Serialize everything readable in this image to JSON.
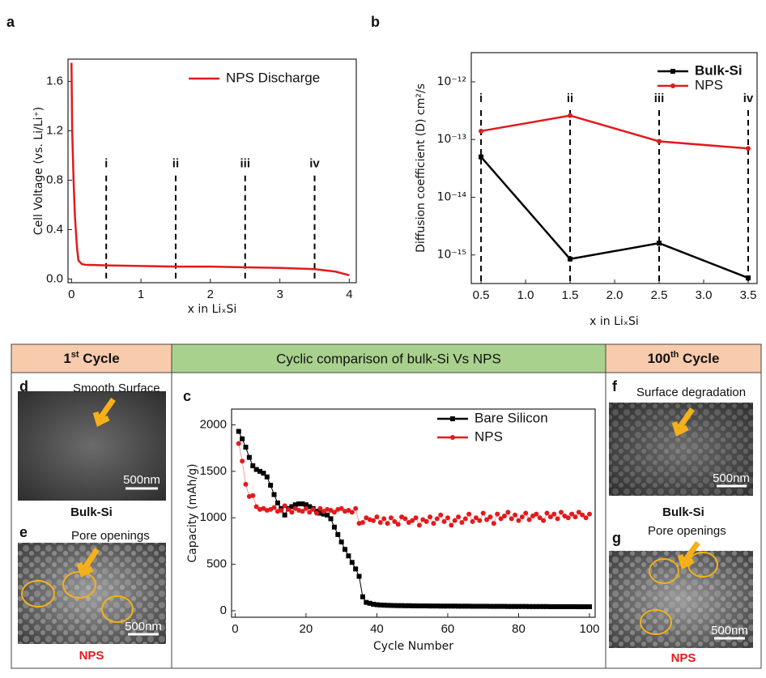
{
  "chart_data": [
    {
      "type": "line",
      "letter": "a",
      "xlabel": "x in LiₓSi",
      "ylabel": "Cell Voltage (vs. Li/Li⁺)",
      "x": [
        0,
        0.01,
        0.03,
        0.05,
        0.08,
        0.1,
        0.15,
        0.2,
        0.5,
        1,
        1.5,
        2,
        2.5,
        3,
        3.5,
        3.8,
        4
      ],
      "series": [
        {
          "name": "NPS Discharge",
          "color": "#e31a1c",
          "marker": "none",
          "values": [
            1.75,
            1.2,
            0.8,
            0.5,
            0.25,
            0.15,
            0.12,
            0.115,
            0.11,
            0.105,
            0.1,
            0.1,
            0.095,
            0.09,
            0.08,
            0.06,
            0.03
          ]
        }
      ],
      "xlim": [
        -0.05,
        4.1
      ],
      "xticks": [
        0,
        1,
        2,
        3,
        4
      ],
      "ylim": [
        -0.03,
        1.78
      ],
      "yticks": [
        {
          "value": 0,
          "label": "0.0"
        },
        {
          "value": 0.4,
          "label": "0.4"
        },
        {
          "value": 0.8,
          "label": "0.8"
        },
        {
          "value": 1.2,
          "label": "1.2"
        },
        {
          "value": 1.6,
          "label": "1.6"
        }
      ],
      "markers": [
        {
          "x": 0.5,
          "label": "i"
        },
        {
          "x": 1.5,
          "label": "ii"
        },
        {
          "x": 2.5,
          "label": "iii"
        },
        {
          "x": 3.5,
          "label": "iv"
        }
      ],
      "legend": "upper right"
    },
    {
      "type": "line",
      "letter": "b",
      "xlabel": "x in LiₓSi",
      "ylabel": "Diffusion coefficient (D) cm²/s",
      "x": [
        0.5,
        1.5,
        2.5,
        3.5
      ],
      "series": [
        {
          "name": "Bulk-Si",
          "color": "#000000",
          "marker": "square",
          "values": [
            5e-14,
            8.5e-16,
            1.6e-15,
            4e-16
          ]
        },
        {
          "name": "NPS",
          "color": "#e31a1c",
          "marker": "circle",
          "values": [
            1.4e-13,
            2.6e-13,
            9.3e-14,
            7e-14
          ]
        }
      ],
      "xlim": [
        0.39,
        3.6
      ],
      "xticks": [
        0.5,
        {
          "value": 1,
          "label": "1.0"
        },
        1.5,
        {
          "value": 2,
          "label": "2.0"
        },
        2.5,
        {
          "value": 3,
          "label": "3.0"
        },
        3.5
      ],
      "yscale": "log",
      "ylim": [
        3.2e-16,
        3.2e-12
      ],
      "yticks": [
        {
          "value": 1e-15,
          "label": "10⁻¹⁵"
        },
        {
          "value": 1e-14,
          "label": "10⁻¹⁴"
        },
        {
          "value": 1e-13,
          "label": "10⁻¹³"
        },
        {
          "value": 1e-12,
          "label": "10⁻¹²"
        }
      ],
      "markers": [
        {
          "x": 0.5,
          "label": "i"
        },
        {
          "x": 1.5,
          "label": "ii"
        },
        {
          "x": 2.5,
          "label": "iii"
        },
        {
          "x": 3.5,
          "label": "iv"
        }
      ],
      "legend": "upper right"
    },
    {
      "type": "line",
      "letter": "c",
      "xlabel": "Cycle Number",
      "ylabel": "Capacity (mAh/g)",
      "x": [
        1,
        2,
        3,
        4,
        5,
        6,
        7,
        8,
        9,
        10,
        11,
        12,
        13,
        14,
        15,
        16,
        17,
        18,
        19,
        20,
        21,
        22,
        23,
        24,
        25,
        26,
        27,
        28,
        29,
        30,
        31,
        32,
        33,
        34,
        35,
        36,
        37,
        38,
        39,
        40,
        41,
        42,
        43,
        44,
        45,
        46,
        47,
        48,
        49,
        50,
        51,
        52,
        53,
        54,
        55,
        56,
        57,
        58,
        59,
        60,
        61,
        62,
        63,
        64,
        65,
        66,
        67,
        68,
        69,
        70,
        71,
        72,
        73,
        74,
        75,
        76,
        77,
        78,
        79,
        80,
        81,
        82,
        83,
        84,
        85,
        86,
        87,
        88,
        89,
        90,
        91,
        92,
        93,
        94,
        95,
        96,
        97,
        98,
        99,
        100
      ],
      "series": [
        {
          "name": "Bare Silicon",
          "color": "#000000",
          "marker": "square",
          "values": [
            1930,
            1850,
            1760,
            1650,
            1560,
            1520,
            1500,
            1480,
            1440,
            1350,
            1250,
            1160,
            1100,
            1030,
            1100,
            1120,
            1140,
            1150,
            1150,
            1140,
            1120,
            1100,
            1070,
            1050,
            1040,
            1030,
            990,
            900,
            820,
            740,
            660,
            590,
            520,
            450,
            370,
            150,
            90,
            80,
            70,
            65,
            62,
            60,
            58,
            57,
            56,
            55,
            55,
            54,
            54,
            53,
            53,
            52,
            52,
            52,
            51,
            51,
            51,
            50,
            50,
            50,
            50,
            50,
            49,
            49,
            49,
            49,
            48,
            48,
            48,
            48,
            48,
            47,
            47,
            47,
            47,
            47,
            46,
            46,
            46,
            46,
            46,
            46,
            45,
            45,
            45,
            45,
            45,
            45,
            44,
            44,
            44,
            44,
            44,
            44,
            44,
            44,
            43,
            43,
            43,
            43
          ]
        },
        {
          "name": "NPS",
          "color": "#e31a1c",
          "marker": "circle",
          "values": [
            1800,
            1610,
            1360,
            1230,
            1240,
            1120,
            1090,
            1100,
            1080,
            1090,
            1110,
            1070,
            1080,
            1130,
            1090,
            1060,
            1100,
            1080,
            1070,
            1100,
            1060,
            1090,
            1050,
            1100,
            1070,
            1090,
            1080,
            1060,
            1090,
            1100,
            1070,
            1080,
            1060,
            1100,
            940,
            950,
            1000,
            980,
            970,
            1010,
            950,
            990,
            940,
            1000,
            960,
            930,
            1010,
            990,
            950,
            970,
            1000,
            920,
            980,
            960,
            1010,
            940,
            990,
            1030,
            960,
            1000,
            920,
            970,
            1010,
            950,
            990,
            1040,
            960,
            1000,
            970,
            1050,
            980,
            1010,
            940,
            1040,
            990,
            1020,
            1060,
            990,
            1030,
            970,
            1010,
            1050,
            980,
            1020,
            1040,
            1000,
            970,
            1050,
            1010,
            1040,
            990,
            1060,
            1020,
            1000,
            1040,
            1010,
            1060,
            1030,
            1000,
            1040
          ]
        }
      ],
      "xlim": [
        -1,
        101.6
      ],
      "xticks": [
        0,
        20,
        40,
        60,
        80,
        100
      ],
      "ylim": [
        -70,
        2170
      ],
      "yticks": [
        0,
        500,
        1000,
        1500,
        2000
      ],
      "legend": "upper right"
    }
  ],
  "panels": {
    "left": {
      "num": "1",
      "sup": "st",
      "rest": " Cycle",
      "d": "d",
      "smooth": "Smooth Surface",
      "bulk": "Bulk-Si",
      "e": "e",
      "pore": "Pore openings",
      "nps": "NPS",
      "scale_d": "500nm",
      "scale_e": "500nm"
    },
    "center": {
      "title": "Cyclic comparison of bulk-Si Vs NPS"
    },
    "right": {
      "num": "100",
      "sup": "th",
      "rest": " Cycle",
      "f": "f",
      "degradation": "Surface degradation",
      "bulk": "Bulk-Si",
      "g": "g",
      "pore": "Pore openings",
      "nps": "NPS",
      "scale_f": "500nm",
      "scale_g": "500nm"
    }
  }
}
